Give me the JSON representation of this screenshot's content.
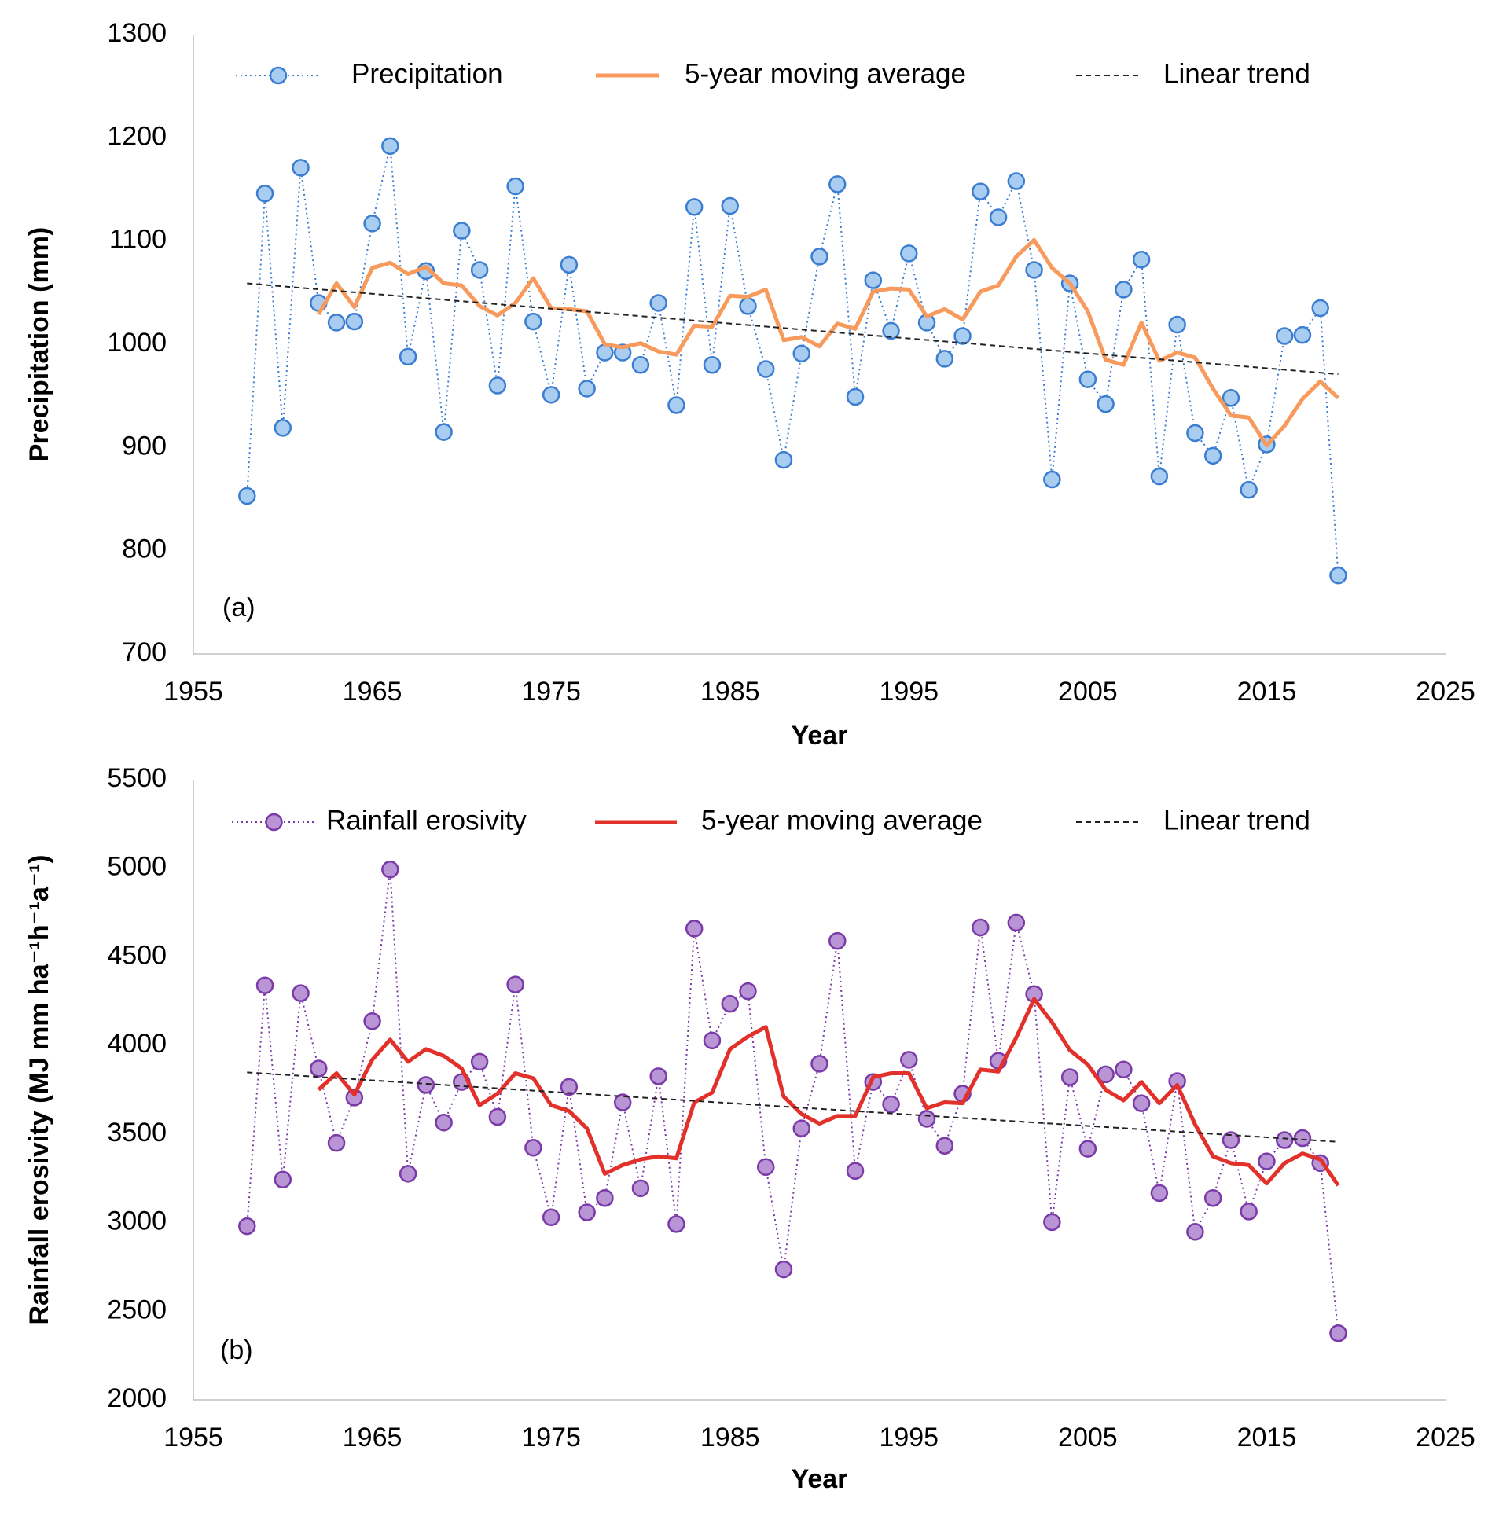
{
  "chart_data": [
    {
      "type": "line",
      "x_label": "Year",
      "y_label": "Precipitation (mm)",
      "annotation": "(a)",
      "x": [
        1958,
        1959,
        1960,
        1961,
        1962,
        1963,
        1964,
        1965,
        1966,
        1967,
        1968,
        1969,
        1970,
        1971,
        1972,
        1973,
        1974,
        1975,
        1976,
        1977,
        1978,
        1979,
        1980,
        1981,
        1982,
        1983,
        1984,
        1985,
        1986,
        1987,
        1988,
        1989,
        1990,
        1991,
        1992,
        1993,
        1994,
        1995,
        1996,
        1997,
        1998,
        1999,
        2000,
        2001,
        2002,
        2003,
        2004,
        2005,
        2006,
        2007,
        2008,
        2009,
        2010,
        2011,
        2012,
        2013,
        2014,
        2015,
        2016,
        2017,
        2018,
        2019
      ],
      "xlim": [
        1955,
        2025
      ],
      "xticks": [
        1955,
        1965,
        1975,
        1985,
        1995,
        2005,
        2015,
        2025
      ],
      "ylim": [
        700,
        1300
      ],
      "yticks": [
        700,
        800,
        900,
        1000,
        1100,
        1200,
        1300
      ],
      "grid": false,
      "legend": "top",
      "series": [
        {
          "name": "Precipitation",
          "color": "#3b7dd1",
          "fill": "#a9cdf0",
          "line_style": "dotted",
          "marker": "circle",
          "values": [
            853,
            1146,
            919,
            1171,
            1040,
            1021,
            1022,
            1117,
            1192,
            988,
            1071,
            915,
            1110,
            1072,
            960,
            1153,
            1022,
            951,
            1077,
            957,
            992,
            992,
            980,
            1040,
            941,
            1133,
            980,
            1134,
            1037,
            976,
            888,
            991,
            1085,
            1155,
            949,
            1062,
            1013,
            1088,
            1021,
            986,
            1008,
            1148,
            1123,
            1158,
            1072,
            869,
            1059,
            966,
            942,
            1053,
            1082,
            872,
            1019,
            914,
            892,
            948,
            859,
            903,
            1008,
            1009,
            1035,
            776
          ]
        },
        {
          "name": "5-year moving average",
          "color": "#f79a5c",
          "line_style": "solid",
          "values": [
            null,
            null,
            null,
            null,
            1029,
            1059,
            1036,
            1074,
            1079,
            1068,
            1075,
            1059,
            1057,
            1037,
            1028,
            1040,
            1064,
            1035,
            1034,
            1032,
            1000,
            997,
            1001,
            993,
            990,
            1018,
            1017,
            1047,
            1046,
            1053,
            1004,
            1007,
            998,
            1020,
            1015,
            1051,
            1054,
            1053,
            1027,
            1034,
            1024,
            1051,
            1057,
            1085,
            1101,
            1074,
            1059,
            1032,
            985,
            980,
            1021,
            984,
            992,
            987,
            957,
            931,
            929,
            902,
            921,
            947,
            964,
            948
          ]
        },
        {
          "name": "Linear trend",
          "color": "#222222",
          "line_style": "dashed",
          "x": [
            1958,
            2019
          ],
          "values": [
            1059,
            971
          ]
        }
      ]
    },
    {
      "type": "line",
      "x_label": "Year",
      "y_label": "Rainfall erosivity (MJ mm ha⁻¹h⁻¹a⁻¹)",
      "annotation": "(b)",
      "x": [
        1958,
        1959,
        1960,
        1961,
        1962,
        1963,
        1964,
        1965,
        1966,
        1967,
        1968,
        1969,
        1970,
        1971,
        1972,
        1973,
        1974,
        1975,
        1976,
        1977,
        1978,
        1979,
        1980,
        1981,
        1982,
        1983,
        1984,
        1985,
        1986,
        1987,
        1988,
        1989,
        1990,
        1991,
        1992,
        1993,
        1994,
        1995,
        1996,
        1997,
        1998,
        1999,
        2000,
        2001,
        2002,
        2003,
        2004,
        2005,
        2006,
        2007,
        2008,
        2009,
        2010,
        2011,
        2012,
        2013,
        2014,
        2015,
        2016,
        2017,
        2018,
        2019
      ],
      "xlim": [
        1955,
        2025
      ],
      "xticks": [
        1955,
        1965,
        1975,
        1985,
        1995,
        2005,
        2015,
        2025
      ],
      "ylim": [
        2000,
        5500
      ],
      "yticks": [
        2000,
        2500,
        3000,
        3500,
        4000,
        4500,
        5000,
        5500
      ],
      "grid": false,
      "legend": "top",
      "series": [
        {
          "name": "Rainfall erosivity",
          "color": "#7a3aa8",
          "fill": "#b995d6",
          "line_style": "dotted",
          "marker": "circle",
          "values": [
            2980,
            4339,
            3243,
            4295,
            3870,
            3450,
            3706,
            4137,
            4993,
            3276,
            3777,
            3565,
            3794,
            3908,
            3597,
            4344,
            3423,
            3030,
            3766,
            3058,
            3139,
            3679,
            3194,
            3826,
            2992,
            4660,
            4028,
            4235,
            4306,
            3314,
            2736,
            3532,
            3897,
            4590,
            3292,
            3794,
            3668,
            3919,
            3586,
            3434,
            3728,
            4666,
            3913,
            4693,
            4290,
            3003,
            3821,
            3417,
            3837,
            3864,
            3674,
            3167,
            3799,
            2948,
            3139,
            3466,
            3063,
            3346,
            3466,
            3477,
            3336,
            2376
          ]
        },
        {
          "name": "5-year moving average",
          "color": "#e2312b",
          "line_style": "solid",
          "values": [
            null,
            null,
            null,
            null,
            3750,
            3843,
            3723,
            3919,
            4033,
            3908,
            3979,
            3941,
            3870,
            3663,
            3728,
            3843,
            3815,
            3663,
            3630,
            3532,
            3276,
            3325,
            3357,
            3374,
            3363,
            3679,
            3734,
            3979,
            4050,
            4104,
            3712,
            3613,
            3559,
            3602,
            3602,
            3821,
            3843,
            3843,
            3646,
            3679,
            3674,
            3864,
            3853,
            4044,
            4262,
            4131,
            3973,
            3892,
            3750,
            3690,
            3794,
            3674,
            3777,
            3554,
            3374,
            3336,
            3325,
            3221,
            3336,
            3390,
            3357,
            3210
          ]
        },
        {
          "name": "Linear trend",
          "color": "#222222",
          "line_style": "dashed",
          "x": [
            1958,
            2019
          ],
          "values": [
            3848,
            3456
          ]
        }
      ]
    }
  ]
}
